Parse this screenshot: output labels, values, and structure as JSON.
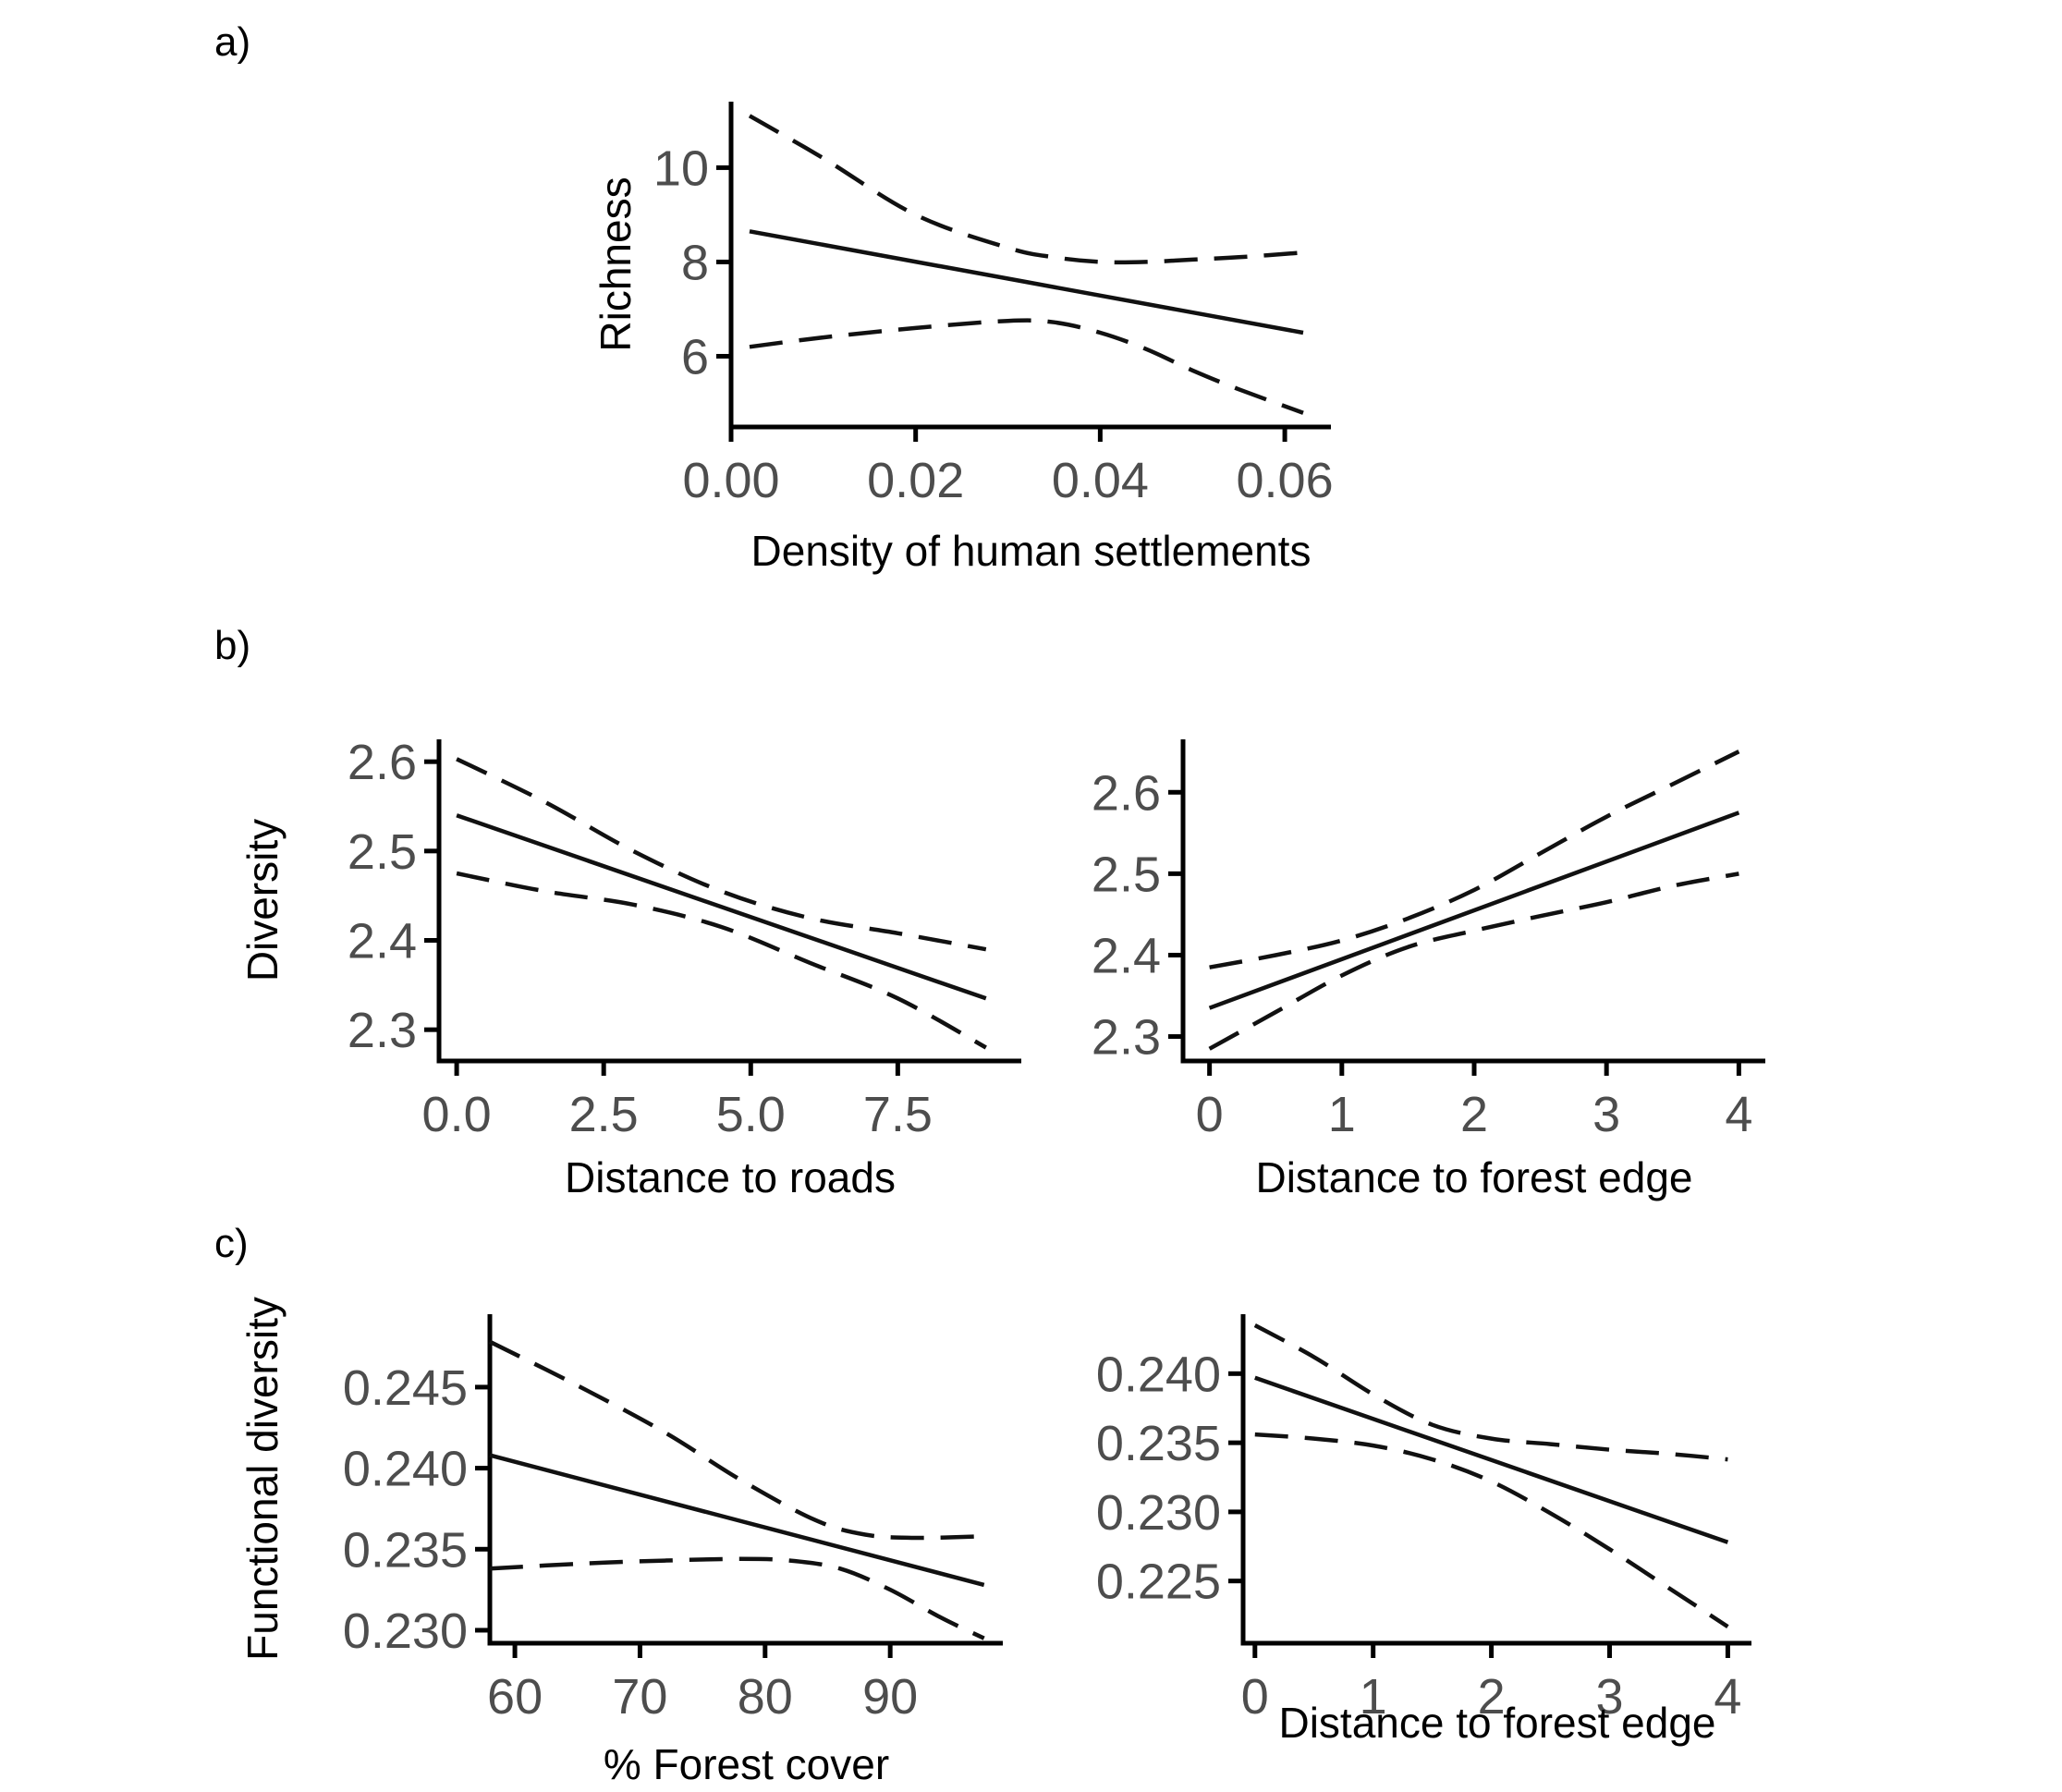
{
  "panels": [
    {
      "letter": "a)"
    },
    {
      "letter": "b)"
    },
    {
      "letter": "c)"
    }
  ],
  "chart_data": [
    {
      "type": "line",
      "panel": "a)",
      "xlabel": "Density of human settlements",
      "ylabel": "Richness",
      "xlim": [
        0,
        0.065
      ],
      "ylim": [
        4.5,
        11.4
      ],
      "xticks": [
        0,
        0.02,
        0.04,
        0.06
      ],
      "xtick_labels": [
        "0.00",
        "0.02",
        "0.04",
        "0.06"
      ],
      "yticks": [
        6,
        8,
        10
      ],
      "ytick_labels": [
        "6",
        "8",
        "10"
      ],
      "grid": false,
      "series": [
        {
          "style": "solid",
          "x": [
            0.002,
            0.062
          ],
          "y": [
            8.65,
            6.5
          ]
        },
        {
          "style": "dashed",
          "x": [
            0.002,
            0.01,
            0.02,
            0.03,
            0.035,
            0.04,
            0.045,
            0.05,
            0.055,
            0.062
          ],
          "y": [
            11.1,
            10.2,
            9.0,
            8.3,
            8.1,
            8.0,
            8.0,
            8.05,
            8.1,
            8.2
          ]
        },
        {
          "style": "dashed",
          "x": [
            0.002,
            0.01,
            0.02,
            0.03,
            0.035,
            0.04,
            0.045,
            0.05,
            0.055,
            0.062
          ],
          "y": [
            6.2,
            6.4,
            6.6,
            6.75,
            6.72,
            6.5,
            6.15,
            5.7,
            5.3,
            4.8
          ]
        }
      ]
    },
    {
      "type": "line",
      "panel": "b)",
      "xlabel": "Distance to roads",
      "ylabel": "Diversity",
      "xlim": [
        -0.3,
        9.6
      ],
      "ylim": [
        2.265,
        2.625
      ],
      "xticks": [
        0,
        2.5,
        5,
        7.5
      ],
      "xtick_labels": [
        "0.0",
        "2.5",
        "5.0",
        "7.5"
      ],
      "yticks": [
        2.3,
        2.4,
        2.5,
        2.6
      ],
      "ytick_labels": [
        "2.3",
        "2.4",
        "2.5",
        "2.6"
      ],
      "grid": false,
      "series": [
        {
          "style": "solid",
          "x": [
            0,
            9
          ],
          "y": [
            2.54,
            2.335
          ]
        },
        {
          "style": "dashed",
          "x": [
            0,
            1.5,
            3,
            4.5,
            6,
            7.5,
            9
          ],
          "y": [
            2.603,
            2.555,
            2.5,
            2.455,
            2.425,
            2.408,
            2.39
          ]
        },
        {
          "style": "dashed",
          "x": [
            0,
            1.5,
            3,
            4.5,
            6,
            7.5,
            9
          ],
          "y": [
            2.475,
            2.455,
            2.44,
            2.415,
            2.375,
            2.335,
            2.28
          ]
        }
      ]
    },
    {
      "type": "line",
      "panel": "b)",
      "xlabel": "Distance to forest edge",
      "ylabel": "",
      "xlim": [
        -0.2,
        4.2
      ],
      "ylim": [
        2.27,
        2.665
      ],
      "xticks": [
        0,
        1,
        2,
        3,
        4
      ],
      "xtick_labels": [
        "0",
        "1",
        "2",
        "3",
        "4"
      ],
      "yticks": [
        2.3,
        2.4,
        2.5,
        2.6
      ],
      "ytick_labels": [
        "2.3",
        "2.4",
        "2.5",
        "2.6"
      ],
      "grid": false,
      "series": [
        {
          "style": "solid",
          "x": [
            0,
            4
          ],
          "y": [
            2.335,
            2.575
          ]
        },
        {
          "style": "dashed",
          "x": [
            0,
            0.5,
            1,
            1.5,
            2,
            2.5,
            3,
            3.5,
            4
          ],
          "y": [
            2.385,
            2.4,
            2.418,
            2.445,
            2.48,
            2.525,
            2.57,
            2.61,
            2.65
          ]
        },
        {
          "style": "dashed",
          "x": [
            0,
            0.5,
            1,
            1.5,
            2,
            2.5,
            3,
            3.5,
            4
          ],
          "y": [
            2.285,
            2.33,
            2.375,
            2.41,
            2.43,
            2.448,
            2.465,
            2.485,
            2.5
          ]
        }
      ]
    },
    {
      "type": "line",
      "panel": "c)",
      "xlabel": "% Forest cover",
      "ylabel": "Functional diversity",
      "xlim": [
        58,
        99
      ],
      "ylim": [
        0.2292,
        0.2495
      ],
      "xticks": [
        60,
        70,
        80,
        90
      ],
      "xtick_labels": [
        "60",
        "70",
        "80",
        "90"
      ],
      "yticks": [
        0.23,
        0.235,
        0.24,
        0.245
      ],
      "ytick_labels": [
        "0.230",
        "0.235",
        "0.240",
        "0.245"
      ],
      "grid": false,
      "series": [
        {
          "style": "solid",
          "x": [
            58,
            97.5
          ],
          "y": [
            0.2408,
            0.2328
          ]
        },
        {
          "style": "dashed",
          "x": [
            58,
            65,
            72,
            78,
            84,
            88,
            92,
            97.5
          ],
          "y": [
            0.2478,
            0.2451,
            0.2422,
            0.2393,
            0.2368,
            0.2359,
            0.2357,
            0.2358
          ]
        },
        {
          "style": "dashed",
          "x": [
            58,
            65,
            72,
            78,
            82,
            86,
            90,
            94,
            97.5
          ],
          "y": [
            0.2338,
            0.2341,
            0.2343,
            0.2344,
            0.2343,
            0.2338,
            0.2325,
            0.2308,
            0.2295
          ]
        }
      ]
    },
    {
      "type": "line",
      "panel": "c)",
      "xlabel": "Distance to forest edge",
      "ylabel": "",
      "xlim": [
        -0.1,
        4.2
      ],
      "ylim": [
        0.2205,
        0.2443
      ],
      "xticks": [
        0,
        1,
        2,
        3,
        4
      ],
      "xtick_labels": [
        "0",
        "1",
        "2",
        "3",
        "4"
      ],
      "yticks": [
        0.225,
        0.23,
        0.235,
        0.24
      ],
      "ytick_labels": [
        "0.225",
        "0.230",
        "0.235",
        "0.240"
      ],
      "grid": false,
      "series": [
        {
          "style": "solid",
          "x": [
            0,
            4
          ],
          "y": [
            0.2397,
            0.2278
          ]
        },
        {
          "style": "dashed",
          "x": [
            0,
            0.5,
            1,
            1.5,
            2,
            2.5,
            3,
            3.5,
            4
          ],
          "y": [
            0.2435,
            0.2412,
            0.2385,
            0.2363,
            0.2353,
            0.2349,
            0.2345,
            0.2342,
            0.2338
          ]
        },
        {
          "style": "dashed",
          "x": [
            0,
            0.5,
            1,
            1.5,
            2,
            2.5,
            3,
            3.5,
            4
          ],
          "y": [
            0.2356,
            0.2353,
            0.2348,
            0.2338,
            0.2322,
            0.2299,
            0.2273,
            0.2245,
            0.2217
          ]
        }
      ]
    }
  ]
}
